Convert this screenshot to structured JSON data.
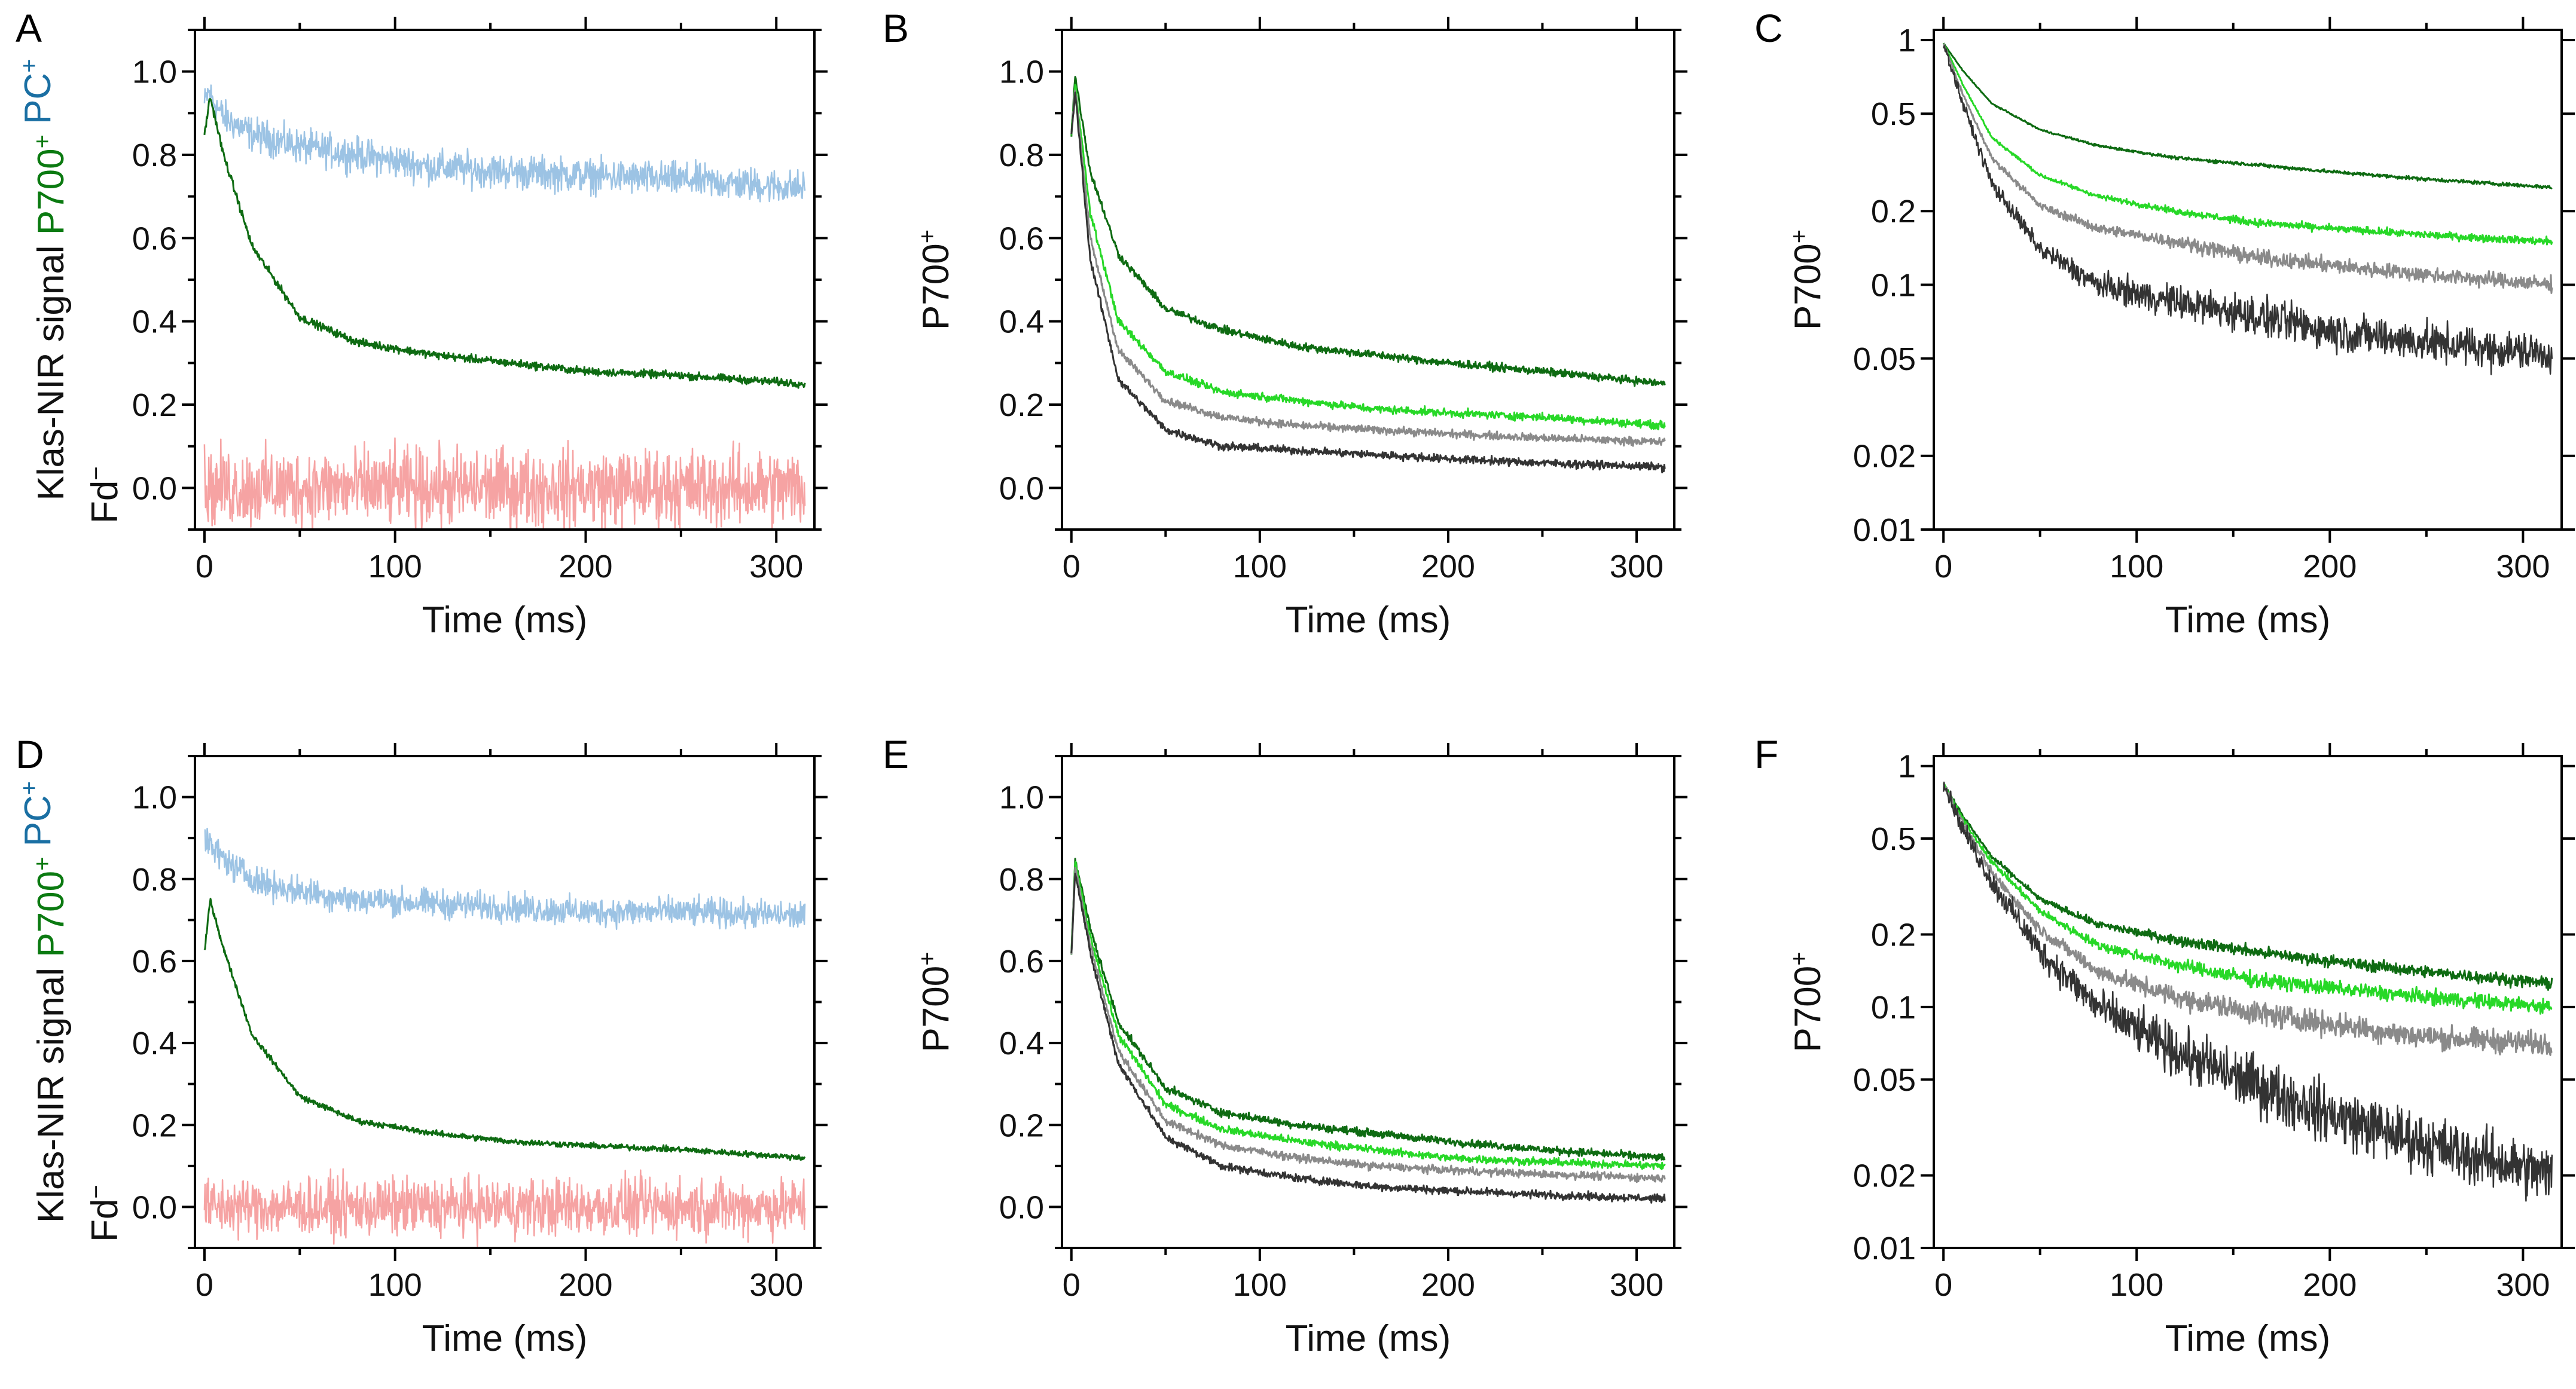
{
  "colors": {
    "P700_wt": "#0e6b12",
    "P700_green": "#27d827",
    "P700_grey": "#8a8a8a",
    "P700_dark": "#333333",
    "PC": "#9cc3e4",
    "Fd": "#f6a3a3",
    "PC_label": "#1a6fa3",
    "Fd_label": "#f26b6b",
    "P700_label": "#0b7a11"
  },
  "chart_data": [
    {
      "panel": "A",
      "type": "line",
      "scale": "linear",
      "xlabel": "Time (ms)",
      "ylabel_parts": [
        {
          "text": "Klas-NIR signal",
          "color": "#111111"
        },
        {
          "text": "P700",
          "color": "#0b7a11",
          "sup": "+"
        },
        {
          "text": "PC",
          "color": "#1a6fa3",
          "sup": "+"
        }
      ],
      "fd_label": {
        "text": "Fd",
        "sup": "−"
      },
      "xlim": [
        -5,
        320
      ],
      "ylim": [
        -0.1,
        1.1
      ],
      "xticks": [
        0,
        100,
        200,
        300
      ],
      "xtick_labels": [
        "0",
        "100",
        "200",
        "300"
      ],
      "yticks": [
        0,
        0.2,
        0.4,
        0.6,
        0.8,
        1.0
      ],
      "ytick_labels": [
        "0.0",
        "0.2",
        "0.4",
        "0.6",
        "0.8",
        "1.0"
      ],
      "series": [
        {
          "name": "PC+",
          "color": "#9cc3e4",
          "x": [
            0,
            2,
            10,
            25,
            50,
            80,
            120,
            160,
            200,
            250,
            315
          ],
          "y": [
            0.92,
            0.95,
            0.89,
            0.85,
            0.82,
            0.8,
            0.77,
            0.76,
            0.75,
            0.74,
            0.72
          ],
          "noise": 0.035,
          "width": 2.5
        },
        {
          "name": "P700+",
          "color": "#0e6b12",
          "x": [
            0,
            3,
            10,
            25,
            50,
            80,
            120,
            160,
            200,
            250,
            315
          ],
          "y": [
            0.85,
            0.94,
            0.8,
            0.58,
            0.41,
            0.35,
            0.32,
            0.3,
            0.28,
            0.27,
            0.25
          ],
          "noise": 0.008,
          "width": 3
        },
        {
          "name": "Fd-",
          "color": "#f6a3a3",
          "x": [
            0,
            315
          ],
          "y": [
            0.0,
            0.0
          ],
          "noise": 0.08,
          "width": 2.5
        }
      ]
    },
    {
      "panel": "B",
      "type": "line",
      "scale": "linear",
      "xlabel": "Time (ms)",
      "ylabel_parts": [
        {
          "text": "P700",
          "color": "#111111",
          "sup": "+"
        }
      ],
      "xlim": [
        -5,
        320
      ],
      "ylim": [
        -0.1,
        1.1
      ],
      "xticks": [
        0,
        100,
        200,
        300
      ],
      "xtick_labels": [
        "0",
        "100",
        "200",
        "300"
      ],
      "yticks": [
        0,
        0.2,
        0.4,
        0.6,
        0.8,
        1.0
      ],
      "ytick_labels": [
        "0.0",
        "0.2",
        "0.4",
        "0.6",
        "0.8",
        "1.0"
      ],
      "series": [
        {
          "name": "dark green",
          "color": "#0e6b12",
          "x": [
            0,
            2,
            10,
            25,
            50,
            80,
            120,
            160,
            200,
            250,
            315
          ],
          "y": [
            0.85,
            0.99,
            0.76,
            0.56,
            0.43,
            0.38,
            0.34,
            0.32,
            0.3,
            0.28,
            0.25
          ],
          "noise": 0.008,
          "width": 3
        },
        {
          "name": "light green",
          "color": "#27d827",
          "x": [
            0,
            2,
            10,
            25,
            50,
            80,
            120,
            160,
            200,
            250,
            315
          ],
          "y": [
            0.85,
            0.97,
            0.66,
            0.4,
            0.28,
            0.23,
            0.21,
            0.19,
            0.18,
            0.17,
            0.15
          ],
          "noise": 0.008,
          "width": 3
        },
        {
          "name": "grey",
          "color": "#8a8a8a",
          "x": [
            0,
            2,
            10,
            25,
            50,
            80,
            120,
            160,
            200,
            250,
            315
          ],
          "y": [
            0.85,
            0.96,
            0.6,
            0.33,
            0.21,
            0.17,
            0.15,
            0.14,
            0.13,
            0.12,
            0.11
          ],
          "noise": 0.008,
          "width": 3
        },
        {
          "name": "dark grey",
          "color": "#333333",
          "x": [
            0,
            2,
            10,
            25,
            50,
            80,
            120,
            160,
            200,
            250,
            315
          ],
          "y": [
            0.85,
            0.95,
            0.55,
            0.26,
            0.14,
            0.1,
            0.09,
            0.08,
            0.07,
            0.06,
            0.05
          ],
          "noise": 0.008,
          "width": 3
        }
      ]
    },
    {
      "panel": "C",
      "type": "line",
      "scale": "log",
      "xlabel": "Time (ms)",
      "ylabel_parts": [
        {
          "text": "P700",
          "color": "#111111",
          "sup": "+"
        }
      ],
      "xlim": [
        -5,
        320
      ],
      "ylim": [
        0.01,
        1.1
      ],
      "xticks": [
        0,
        100,
        200,
        300
      ],
      "xtick_labels": [
        "0",
        "100",
        "200",
        "300"
      ],
      "yticks": [
        0.01,
        0.02,
        0.05,
        0.1,
        0.2,
        0.5,
        1
      ],
      "ytick_labels": [
        "0.01",
        "0.02",
        "0.05",
        "0.1",
        "0.2",
        "0.5",
        "1"
      ],
      "series": [
        {
          "name": "dark green",
          "color": "#0e6b12",
          "x": [
            0,
            10,
            25,
            50,
            80,
            120,
            160,
            200,
            250,
            315
          ],
          "y": [
            0.97,
            0.75,
            0.55,
            0.43,
            0.37,
            0.33,
            0.31,
            0.29,
            0.27,
            0.25
          ],
          "noise": 0.012,
          "width": 3
        },
        {
          "name": "light green",
          "color": "#27d827",
          "x": [
            0,
            10,
            25,
            50,
            80,
            120,
            160,
            200,
            250,
            315
          ],
          "y": [
            0.97,
            0.66,
            0.4,
            0.28,
            0.23,
            0.2,
            0.18,
            0.17,
            0.16,
            0.15
          ],
          "noise": 0.025,
          "width": 3
        },
        {
          "name": "grey",
          "color": "#8a8a8a",
          "x": [
            0,
            10,
            25,
            50,
            80,
            120,
            160,
            200,
            250,
            315
          ],
          "y": [
            0.97,
            0.6,
            0.33,
            0.21,
            0.17,
            0.15,
            0.13,
            0.12,
            0.11,
            0.1
          ],
          "noise": 0.05,
          "width": 3
        },
        {
          "name": "dark grey",
          "color": "#333333",
          "x": [
            0,
            10,
            25,
            50,
            80,
            120,
            160,
            200,
            250,
            315
          ],
          "y": [
            0.97,
            0.55,
            0.26,
            0.14,
            0.1,
            0.085,
            0.075,
            0.065,
            0.058,
            0.052
          ],
          "noise": 0.13,
          "width": 2.5
        }
      ]
    },
    {
      "panel": "D",
      "type": "line",
      "scale": "linear",
      "xlabel": "Time (ms)",
      "ylabel_parts": [
        {
          "text": "Klas-NIR signal",
          "color": "#111111"
        },
        {
          "text": "P700",
          "color": "#0b7a11",
          "sup": "+"
        },
        {
          "text": "PC",
          "color": "#1a6fa3",
          "sup": "+"
        }
      ],
      "fd_label": {
        "text": "Fd",
        "sup": "−"
      },
      "xlim": [
        -5,
        320
      ],
      "ylim": [
        -0.1,
        1.1
      ],
      "xticks": [
        0,
        100,
        200,
        300
      ],
      "xtick_labels": [
        "0",
        "100",
        "200",
        "300"
      ],
      "yticks": [
        0,
        0.2,
        0.4,
        0.6,
        0.8,
        1.0
      ],
      "ytick_labels": [
        "0.0",
        "0.2",
        "0.4",
        "0.6",
        "0.8",
        "1.0"
      ],
      "series": [
        {
          "name": "PC+",
          "color": "#9cc3e4",
          "x": [
            0,
            3,
            15,
            30,
            50,
            80,
            120,
            160,
            200,
            250,
            315
          ],
          "y": [
            0.9,
            0.88,
            0.83,
            0.79,
            0.77,
            0.75,
            0.74,
            0.73,
            0.72,
            0.72,
            0.71
          ],
          "noise": 0.03,
          "width": 2.5
        },
        {
          "name": "P700+",
          "color": "#0e6b12",
          "x": [
            0,
            3,
            10,
            25,
            50,
            80,
            120,
            160,
            200,
            250,
            315
          ],
          "y": [
            0.62,
            0.75,
            0.63,
            0.42,
            0.27,
            0.21,
            0.18,
            0.16,
            0.15,
            0.14,
            0.12
          ],
          "noise": 0.006,
          "width": 3
        },
        {
          "name": "Fd-",
          "color": "#f6a3a3",
          "x": [
            0,
            315
          ],
          "y": [
            0.0,
            0.0
          ],
          "noise": 0.06,
          "width": 2.5
        }
      ]
    },
    {
      "panel": "E",
      "type": "line",
      "scale": "linear",
      "xlabel": "Time (ms)",
      "ylabel_parts": [
        {
          "text": "P700",
          "color": "#111111",
          "sup": "+"
        }
      ],
      "xlim": [
        -5,
        320
      ],
      "ylim": [
        -0.1,
        1.1
      ],
      "xticks": [
        0,
        100,
        200,
        300
      ],
      "xtick_labels": [
        "0",
        "100",
        "200",
        "300"
      ],
      "yticks": [
        0,
        0.2,
        0.4,
        0.6,
        0.8,
        1.0
      ],
      "ytick_labels": [
        "0.0",
        "0.2",
        "0.4",
        "0.6",
        "0.8",
        "1.0"
      ],
      "series": [
        {
          "name": "dark green",
          "color": "#0e6b12",
          "x": [
            0,
            2,
            10,
            25,
            50,
            80,
            120,
            160,
            200,
            250,
            315
          ],
          "y": [
            0.62,
            0.85,
            0.68,
            0.45,
            0.29,
            0.23,
            0.2,
            0.18,
            0.16,
            0.14,
            0.12
          ],
          "noise": 0.008,
          "width": 3
        },
        {
          "name": "light green",
          "color": "#27d827",
          "x": [
            0,
            2,
            10,
            25,
            50,
            80,
            120,
            160,
            200,
            250,
            315
          ],
          "y": [
            0.62,
            0.84,
            0.66,
            0.42,
            0.25,
            0.19,
            0.16,
            0.14,
            0.12,
            0.11,
            0.1
          ],
          "noise": 0.008,
          "width": 3
        },
        {
          "name": "grey",
          "color": "#8a8a8a",
          "x": [
            0,
            2,
            10,
            25,
            50,
            80,
            120,
            160,
            200,
            250,
            315
          ],
          "y": [
            0.62,
            0.83,
            0.64,
            0.38,
            0.21,
            0.15,
            0.12,
            0.1,
            0.09,
            0.08,
            0.07
          ],
          "noise": 0.008,
          "width": 3
        },
        {
          "name": "dark grey",
          "color": "#333333",
          "x": [
            0,
            2,
            10,
            25,
            50,
            80,
            120,
            160,
            200,
            250,
            315
          ],
          "y": [
            0.62,
            0.82,
            0.62,
            0.35,
            0.17,
            0.1,
            0.07,
            0.05,
            0.04,
            0.03,
            0.02
          ],
          "noise": 0.008,
          "width": 3
        }
      ]
    },
    {
      "panel": "F",
      "type": "line",
      "scale": "log",
      "xlabel": "Time (ms)",
      "ylabel_parts": [
        {
          "text": "P700",
          "color": "#111111",
          "sup": "+"
        }
      ],
      "xlim": [
        -5,
        320
      ],
      "ylim": [
        0.01,
        1.1
      ],
      "xticks": [
        0,
        100,
        200,
        300
      ],
      "xtick_labels": [
        "0",
        "100",
        "200",
        "300"
      ],
      "yticks": [
        0.01,
        0.02,
        0.05,
        0.1,
        0.2,
        0.5,
        1
      ],
      "ytick_labels": [
        "0.01",
        "0.02",
        "0.05",
        "0.1",
        "0.2",
        "0.5",
        "1"
      ],
      "series": [
        {
          "name": "dark green",
          "color": "#0e6b12",
          "x": [
            0,
            10,
            25,
            50,
            80,
            120,
            160,
            200,
            250,
            315
          ],
          "y": [
            0.85,
            0.62,
            0.42,
            0.28,
            0.22,
            0.19,
            0.17,
            0.155,
            0.14,
            0.125
          ],
          "noise": 0.04,
          "width": 3
        },
        {
          "name": "light green",
          "color": "#27d827",
          "x": [
            0,
            10,
            25,
            50,
            80,
            120,
            160,
            200,
            250,
            315
          ],
          "y": [
            0.85,
            0.6,
            0.4,
            0.25,
            0.18,
            0.15,
            0.13,
            0.12,
            0.11,
            0.1
          ],
          "noise": 0.05,
          "width": 3
        },
        {
          "name": "grey",
          "color": "#8a8a8a",
          "x": [
            0,
            10,
            25,
            50,
            80,
            120,
            160,
            200,
            250,
            315
          ],
          "y": [
            0.85,
            0.58,
            0.36,
            0.21,
            0.14,
            0.11,
            0.095,
            0.085,
            0.075,
            0.07
          ],
          "noise": 0.08,
          "width": 3
        },
        {
          "name": "dark grey",
          "color": "#333333",
          "x": [
            0,
            10,
            25,
            50,
            80,
            120,
            160,
            200,
            250,
            315
          ],
          "y": [
            0.85,
            0.55,
            0.33,
            0.17,
            0.1,
            0.065,
            0.048,
            0.036,
            0.027,
            0.02
          ],
          "noise": 0.2,
          "width": 2.5
        }
      ]
    }
  ]
}
